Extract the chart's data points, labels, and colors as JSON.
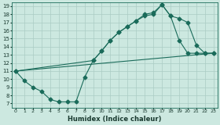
{
  "xlabel": "Humidex (Indice chaleur)",
  "bg_color": "#cce8e0",
  "line_color": "#1a6b5a",
  "grid_color": "#aaccC4",
  "xlim": [
    -0.5,
    23.5
  ],
  "ylim": [
    6.5,
    19.5
  ],
  "xticks": [
    0,
    1,
    2,
    3,
    4,
    5,
    6,
    7,
    8,
    9,
    10,
    11,
    12,
    13,
    14,
    15,
    16,
    17,
    18,
    19,
    20,
    21,
    22,
    23
  ],
  "yticks": [
    7,
    8,
    9,
    10,
    11,
    12,
    13,
    14,
    15,
    16,
    17,
    18,
    19
  ],
  "line1_x": [
    0,
    1,
    2,
    3,
    4,
    5,
    6,
    7,
    8,
    9,
    10,
    11,
    12,
    13,
    14,
    15,
    16,
    17,
    18,
    19,
    20,
    21,
    22,
    23
  ],
  "line1_y": [
    11,
    9.8,
    9.0,
    8.5,
    7.5,
    7.2,
    7.2,
    7.2,
    10.2,
    12.3,
    13.5,
    14.8,
    15.8,
    16.5,
    17.2,
    17.8,
    18.0,
    19.2,
    17.8,
    17.5,
    17.0,
    14.2,
    13.2,
    13.2
  ],
  "line2_x": [
    0,
    9,
    10,
    11,
    12,
    13,
    14,
    15,
    16,
    17,
    18,
    19,
    20,
    21,
    22,
    23
  ],
  "line2_y": [
    11,
    12.3,
    13.5,
    14.8,
    15.8,
    16.5,
    17.2,
    18.0,
    18.2,
    19.2,
    17.8,
    14.8,
    13.2,
    13.2,
    13.2,
    13.2
  ],
  "line3_x": [
    0,
    23
  ],
  "line3_y": [
    11,
    13.2
  ]
}
